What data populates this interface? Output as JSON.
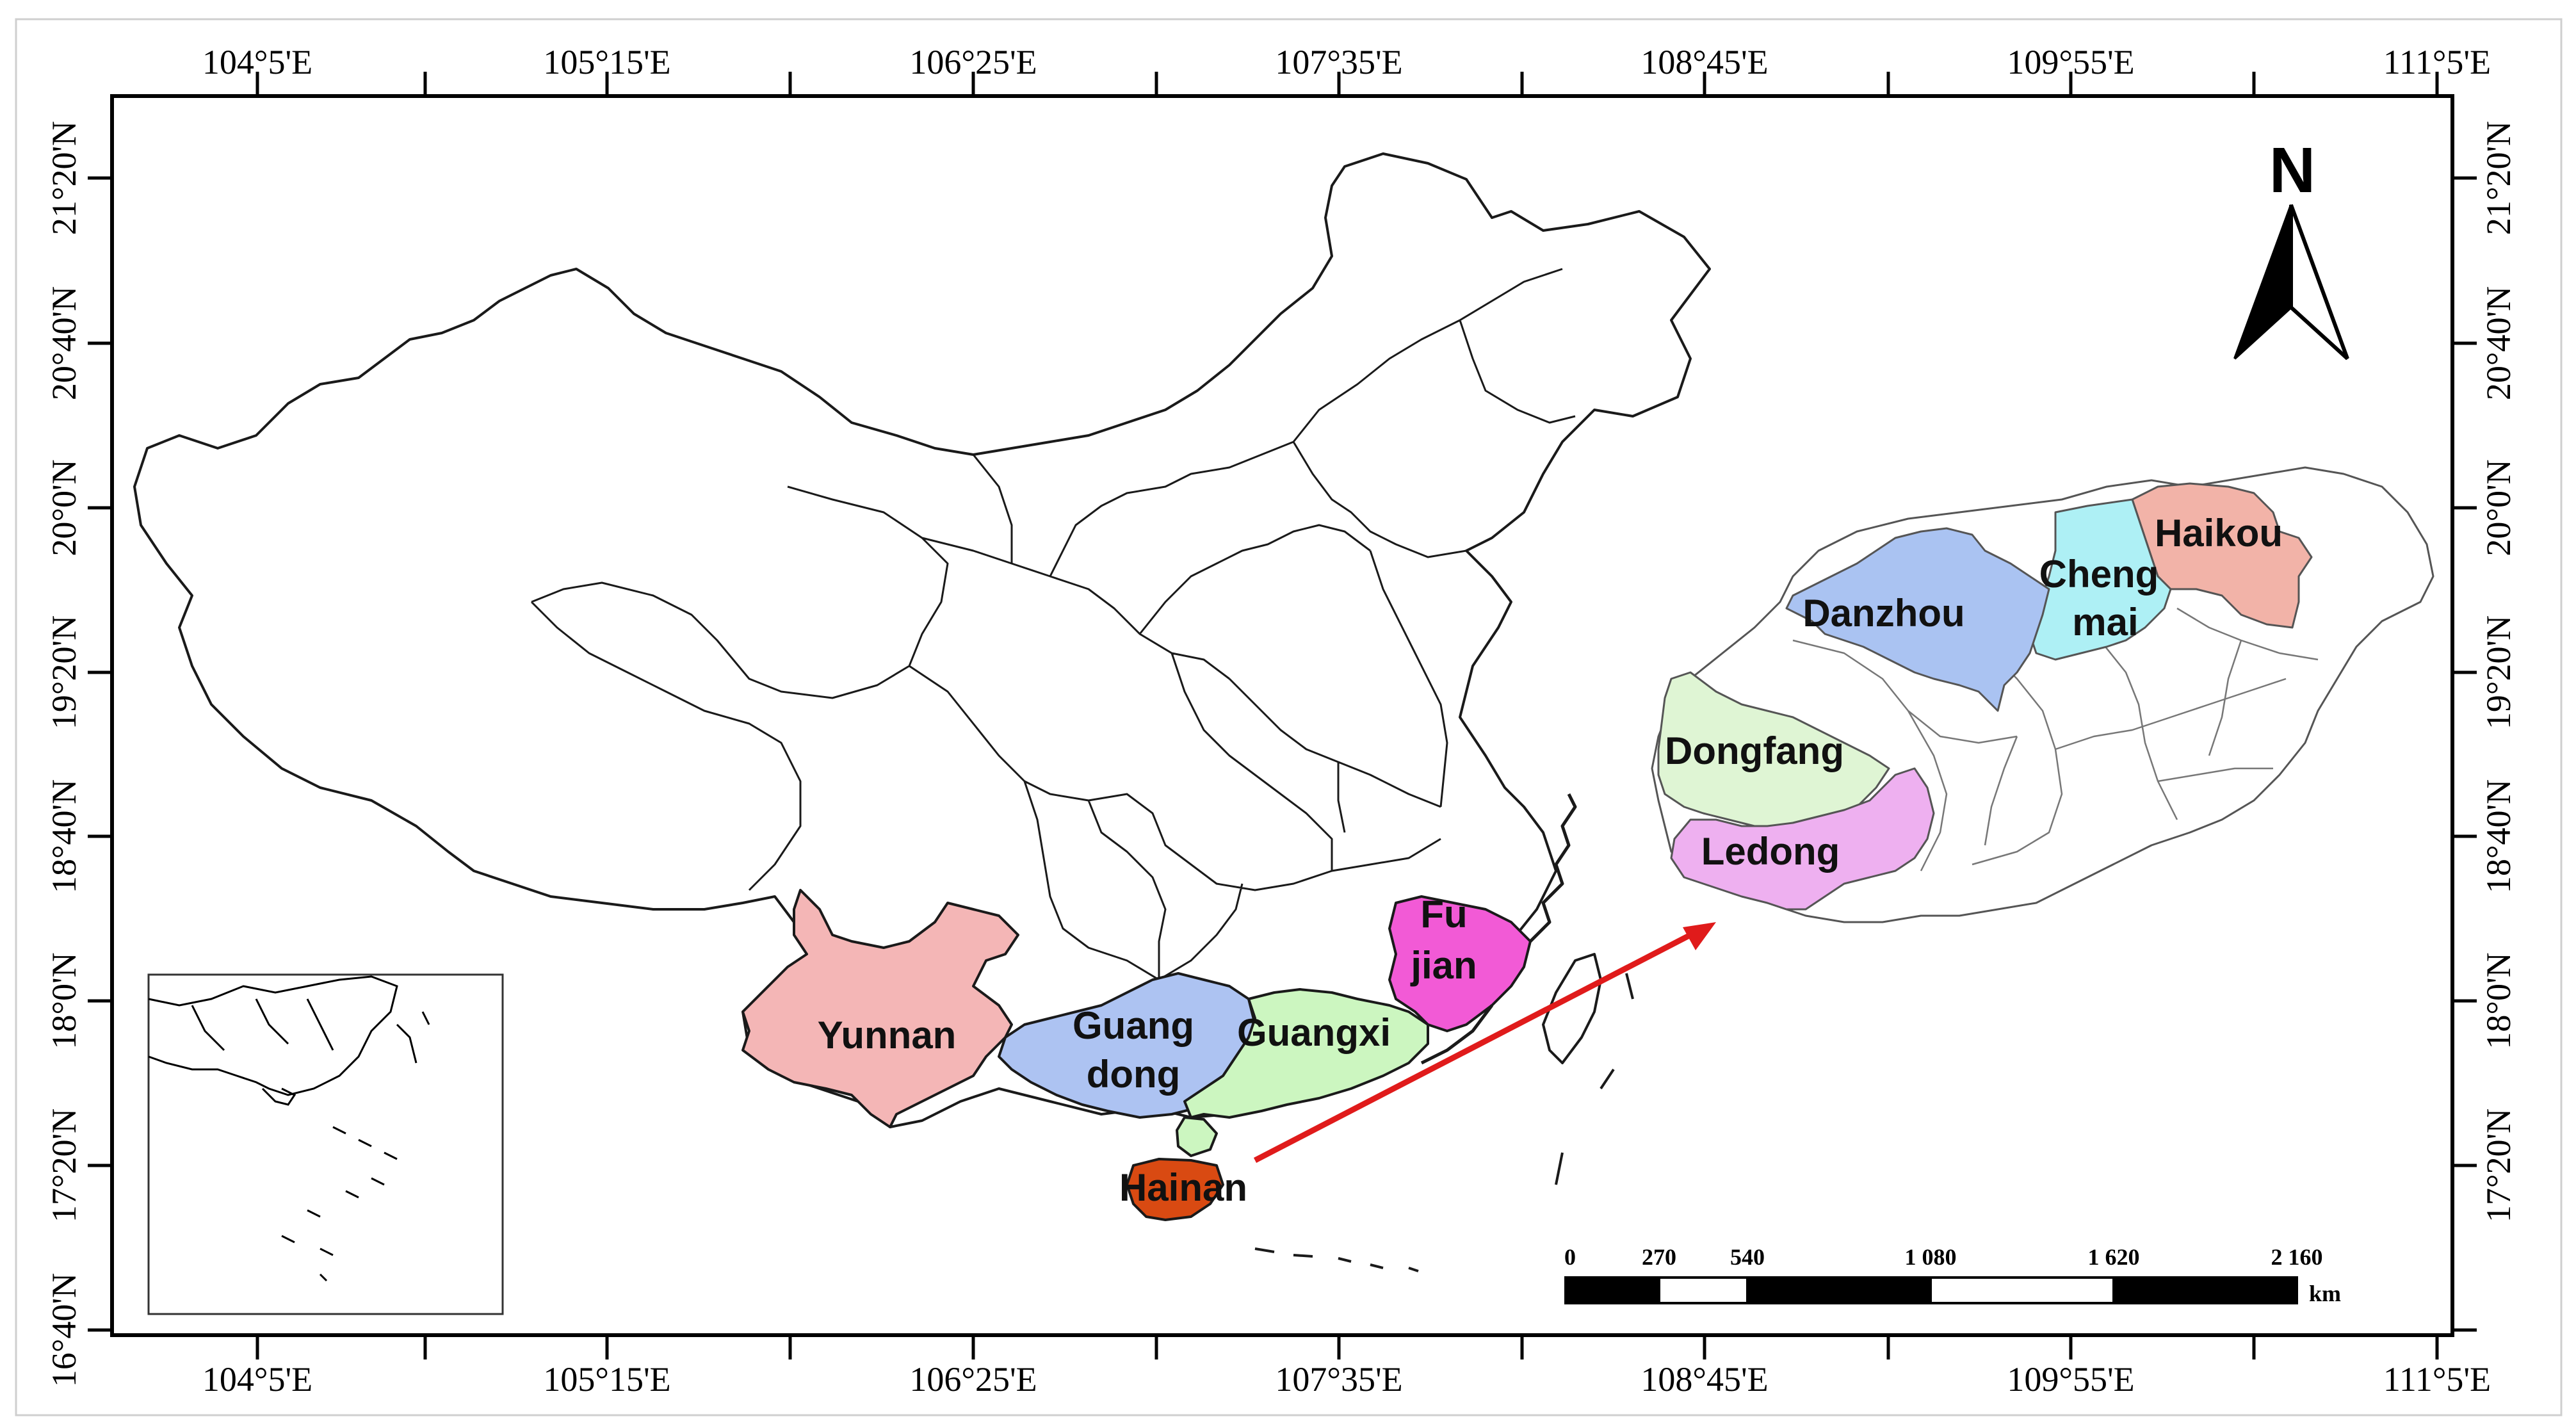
{
  "map": {
    "longitude_ticks": [
      "104°5'E",
      "105°15'E",
      "106°25'E",
      "107°35'E",
      "108°45'E",
      "109°55'E",
      "111°5'E"
    ],
    "latitude_ticks": [
      "21°20'N",
      "20°40'N",
      "20°0'N",
      "19°20'N",
      "18°40'N",
      "18°0'N",
      "17°20'N",
      "16°40'N"
    ],
    "provinces": [
      {
        "name": "Yunnan",
        "color": "#f4b6b6"
      },
      {
        "name": "Guangdong",
        "label_lines": [
          "Guang",
          "dong"
        ],
        "color": "#adc3f2"
      },
      {
        "name": "Guangxi",
        "color": "#ccf6c0"
      },
      {
        "name": "Fujian",
        "label_lines": [
          "Fu",
          "jian"
        ],
        "color": "#f25ad6"
      },
      {
        "name": "Hainan",
        "color": "#d94a12"
      }
    ],
    "hainan_regions": [
      {
        "name": "Haikou",
        "color": "#f2b3a8"
      },
      {
        "name": "Chengmai",
        "label_lines": [
          "Cheng",
          "mai"
        ],
        "color": "#aef0f5"
      },
      {
        "name": "Danzhou",
        "color": "#aac3f2"
      },
      {
        "name": "Dongfang",
        "color": "#dff5d4"
      },
      {
        "name": "Ledong",
        "color": "#eeb0f0"
      }
    ],
    "north_arrow": {
      "label": "N"
    },
    "scale_bar": {
      "ticks": [
        "0",
        "270",
        "540",
        "1 080",
        "1 620",
        "2 160"
      ],
      "unit": "km"
    },
    "arrow_color": "#e01b1b"
  }
}
